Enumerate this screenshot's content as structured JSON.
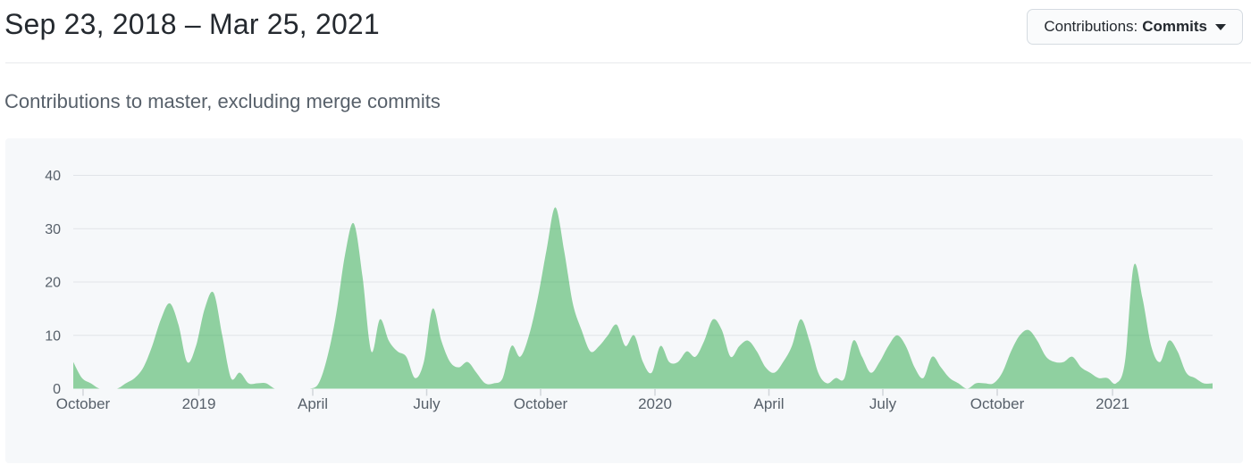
{
  "header": {
    "title": "Sep 23, 2018 – Mar 25, 2021",
    "filter_label": "Contributions:",
    "filter_value": "Commits",
    "dropdown_caret_icon": "caret-down"
  },
  "subtitle": "Contributions to master, excluding merge commits",
  "chart_data": {
    "type": "area",
    "series_name": "Commits per week",
    "x_start": "Sep 23, 2018",
    "x_end": "Mar 25, 2021",
    "interval": "weekly",
    "values": [
      5,
      2,
      1,
      0,
      0,
      0,
      1,
      2,
      4,
      8,
      13,
      16,
      12,
      5,
      8,
      15,
      18,
      10,
      2,
      3,
      1,
      1,
      1,
      0,
      0,
      0,
      0,
      0,
      1,
      6,
      14,
      25,
      31,
      21,
      7,
      13,
      9,
      7,
      6,
      2,
      5,
      15,
      9,
      5,
      4,
      5,
      3,
      1,
      1,
      2,
      8,
      6,
      10,
      17,
      26,
      34,
      26,
      16,
      11,
      7,
      8,
      10,
      12,
      8,
      10,
      5,
      3,
      8,
      5,
      5,
      7,
      6,
      9,
      13,
      11,
      6,
      8,
      9,
      7,
      4,
      3,
      5,
      8,
      13,
      9,
      3,
      1,
      2,
      2,
      9,
      6,
      3,
      5,
      8,
      10,
      8,
      4,
      2,
      6,
      4,
      2,
      1,
      0,
      1,
      1,
      1,
      3,
      7,
      10,
      11,
      9,
      6,
      5,
      5,
      6,
      4,
      3,
      2,
      2,
      1,
      5,
      23,
      17,
      8,
      5,
      9,
      7,
      3,
      2,
      1,
      1
    ],
    "ylim": [
      0,
      40
    ],
    "y_ticks": [
      0,
      10,
      20,
      30,
      40
    ],
    "x_ticks": [
      {
        "label": "October",
        "f": 0.0086
      },
      {
        "label": "2019",
        "f": 0.1102
      },
      {
        "label": "April",
        "f": 0.2102
      },
      {
        "label": "July",
        "f": 0.3102
      },
      {
        "label": "October",
        "f": 0.4102
      },
      {
        "label": "2020",
        "f": 0.5106
      },
      {
        "label": "April",
        "f": 0.6106
      },
      {
        "label": "July",
        "f": 0.7106
      },
      {
        "label": "October",
        "f": 0.811
      },
      {
        "label": "2021",
        "f": 0.9122
      }
    ],
    "grid": true,
    "legend": "none",
    "colors": {
      "area_fill": "#28a745",
      "area_fill_opacity": 0.5,
      "gridline": "#e1e4e8",
      "tick_mark": "#d1d5da",
      "axis_label": "#57606a",
      "plot_background": "#f6f8fa"
    }
  }
}
